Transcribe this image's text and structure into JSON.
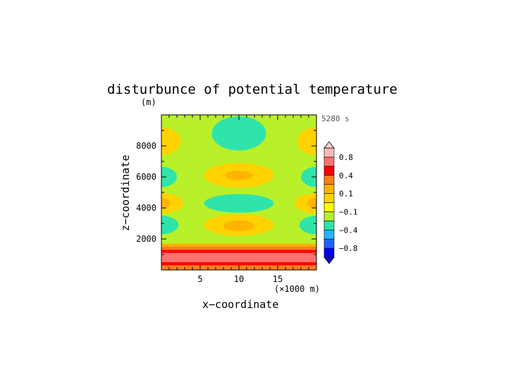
{
  "chart_data": {
    "type": "heatmap",
    "title": "disturbunce of potential temperature",
    "ylabel": "z−coordinate",
    "xlabel": "x−coordinate",
    "yunit": "(m)",
    "xunit": "(×1000 m)",
    "time_label": "5280 s",
    "xlim": [
      0,
      20
    ],
    "ylim": [
      0,
      10000
    ],
    "xticks": [
      {
        "value": 5,
        "label": "5"
      },
      {
        "value": 10,
        "label": "10"
      },
      {
        "value": 15,
        "label": "15"
      }
    ],
    "yticks": [
      {
        "value": 2000,
        "label": "2000"
      },
      {
        "value": 4000,
        "label": "4000"
      },
      {
        "value": 6000,
        "label": "6000"
      },
      {
        "value": 8000,
        "label": "8000"
      }
    ],
    "colorbar": {
      "levels": [
        -1.0,
        -0.8,
        -0.6,
        -0.4,
        -0.2,
        -0.1,
        0,
        0.1,
        0.2,
        0.4,
        0.6,
        0.8,
        1.0
      ],
      "colors": [
        "#0000ff",
        "#1e63ff",
        "#23b4ff",
        "#2fe4aa",
        "#b8f02a",
        "#ffff00",
        "#ffd200",
        "#ffb400",
        "#ff7d1e",
        "#ff0000",
        "#ff7272",
        "#ffb9b9"
      ],
      "under_color": "#0000c8",
      "over_color": "#ffd2d2",
      "labels": [
        {
          "value": 0.8,
          "label": "0.8"
        },
        {
          "value": 0.4,
          "label": "0.4"
        },
        {
          "value": 0.1,
          "label": "0.1"
        },
        {
          "value": -0.1,
          "label": "−0.1"
        },
        {
          "value": -0.4,
          "label": "−0.4"
        },
        {
          "value": -0.8,
          "label": "−0.8"
        }
      ]
    },
    "field": {
      "background_value": -0.15,
      "surface_layer": [
        {
          "z0": 0,
          "z1": 300,
          "value": 0.3
        },
        {
          "z0": 300,
          "z1": 500,
          "value": 0.5
        },
        {
          "z0": 500,
          "z1": 1100,
          "value": 0.7
        },
        {
          "z0": 1100,
          "z1": 1300,
          "value": 0.5
        },
        {
          "z0": 1300,
          "z1": 1500,
          "value": 0.3
        },
        {
          "z0": 1500,
          "z1": 1700,
          "value": 0.15
        }
      ],
      "features": [
        {
          "x": 10,
          "z": 8800,
          "rx": 3.5,
          "rz": 1100,
          "value": -0.3
        },
        {
          "x": 10,
          "z": 9100,
          "rx": 3.0,
          "rz": 800,
          "value": -0.3
        },
        {
          "x": 10,
          "z": 6100,
          "rx": 4.5,
          "rz": 800,
          "value": 0.05
        },
        {
          "x": 10,
          "z": 6100,
          "rx": 1.8,
          "rz": 300,
          "value": 0.15
        },
        {
          "x": 10,
          "z": 4300,
          "rx": 4.5,
          "rz": 600,
          "value": -0.3
        },
        {
          "x": 10,
          "z": 2900,
          "rx": 4.5,
          "rz": 700,
          "value": 0.05
        },
        {
          "x": 10,
          "z": 2850,
          "rx": 2.0,
          "rz": 350,
          "value": 0.15
        },
        {
          "x": 0,
          "z": 8300,
          "rx": 2.5,
          "rz": 900,
          "value": 0.05
        },
        {
          "x": 20,
          "z": 8300,
          "rx": 2.5,
          "rz": 900,
          "value": 0.05
        },
        {
          "x": 0,
          "z": 6000,
          "rx": 2.0,
          "rz": 650,
          "value": -0.3
        },
        {
          "x": 20,
          "z": 6000,
          "rx": 2.0,
          "rz": 650,
          "value": -0.3
        },
        {
          "x": 0,
          "z": 4300,
          "rx": 2.8,
          "rz": 650,
          "value": 0.05
        },
        {
          "x": 20,
          "z": 4300,
          "rx": 2.8,
          "rz": 650,
          "value": 0.05
        },
        {
          "x": 0,
          "z": 4300,
          "rx": 1.2,
          "rz": 350,
          "value": 0.15
        },
        {
          "x": 20,
          "z": 4300,
          "rx": 1.2,
          "rz": 350,
          "value": 0.15
        },
        {
          "x": 0,
          "z": 2900,
          "rx": 2.2,
          "rz": 600,
          "value": -0.3
        },
        {
          "x": 20,
          "z": 2900,
          "rx": 2.2,
          "rz": 600,
          "value": -0.3
        }
      ]
    }
  }
}
